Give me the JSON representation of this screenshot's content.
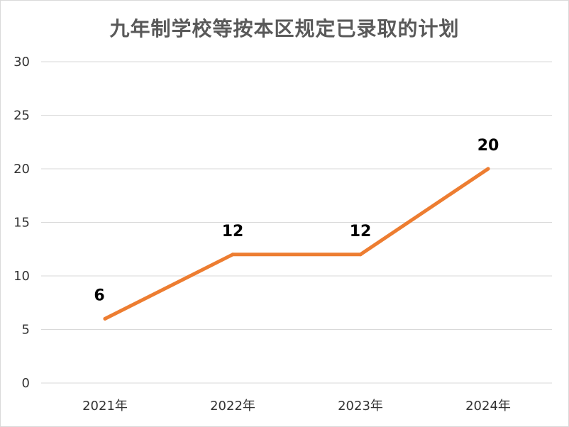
{
  "chart_data": {
    "type": "line",
    "title": "九年制学校等按本区规定已录取的计划",
    "categories": [
      "2021年",
      "2022年",
      "2023年",
      "2024年"
    ],
    "series": [
      {
        "values": [
          6,
          12,
          12,
          20
        ],
        "data_labels": [
          "6",
          "12",
          "12",
          "20"
        ]
      }
    ],
    "ylim": [
      0,
      30
    ],
    "yticks": [
      0,
      5,
      10,
      15,
      20,
      25,
      30
    ],
    "grid": true,
    "legend": "none",
    "line_color": "#ED7D31",
    "grid_color": "#d9d9d9"
  }
}
